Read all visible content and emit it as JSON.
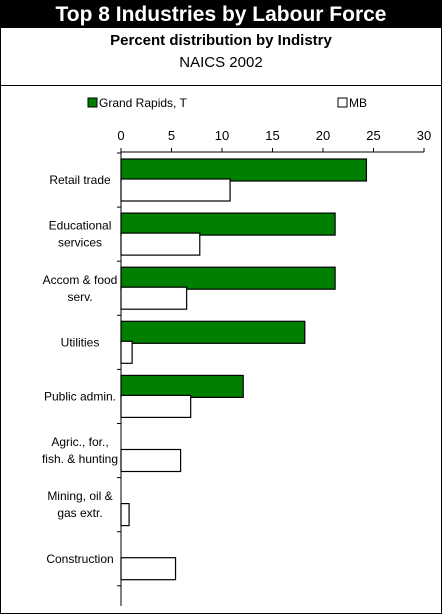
{
  "chart_data": {
    "type": "bar",
    "orientation": "horizontal",
    "title": "Top 8 Industries by Labour Force",
    "subtitle": "Percent distribution by Indistry",
    "subtitle2": "NAICS 2002",
    "categories": [
      [
        "Retail trade"
      ],
      [
        "Educational",
        "services"
      ],
      [
        "Accom & food",
        "serv."
      ],
      [
        "Utilities"
      ],
      [
        "Public admin."
      ],
      [
        "Agric., for.,",
        "fish. & hunting"
      ],
      [
        "Mining, oil &",
        "gas extr."
      ],
      [
        "Construction"
      ]
    ],
    "series": [
      {
        "name": "Grand Rapids, T",
        "color": "#008000",
        "values": [
          24.3,
          21.2,
          21.2,
          18.2,
          12.1,
          0,
          0,
          0
        ]
      },
      {
        "name": "MB",
        "color": "#ffffff",
        "values": [
          10.8,
          7.8,
          6.5,
          1.1,
          6.9,
          5.9,
          0.8,
          5.4
        ]
      }
    ],
    "xlim": [
      0,
      30
    ],
    "xticks": [
      0,
      5,
      10,
      15,
      20,
      25,
      30
    ],
    "legend_position": "top",
    "grid": false
  }
}
